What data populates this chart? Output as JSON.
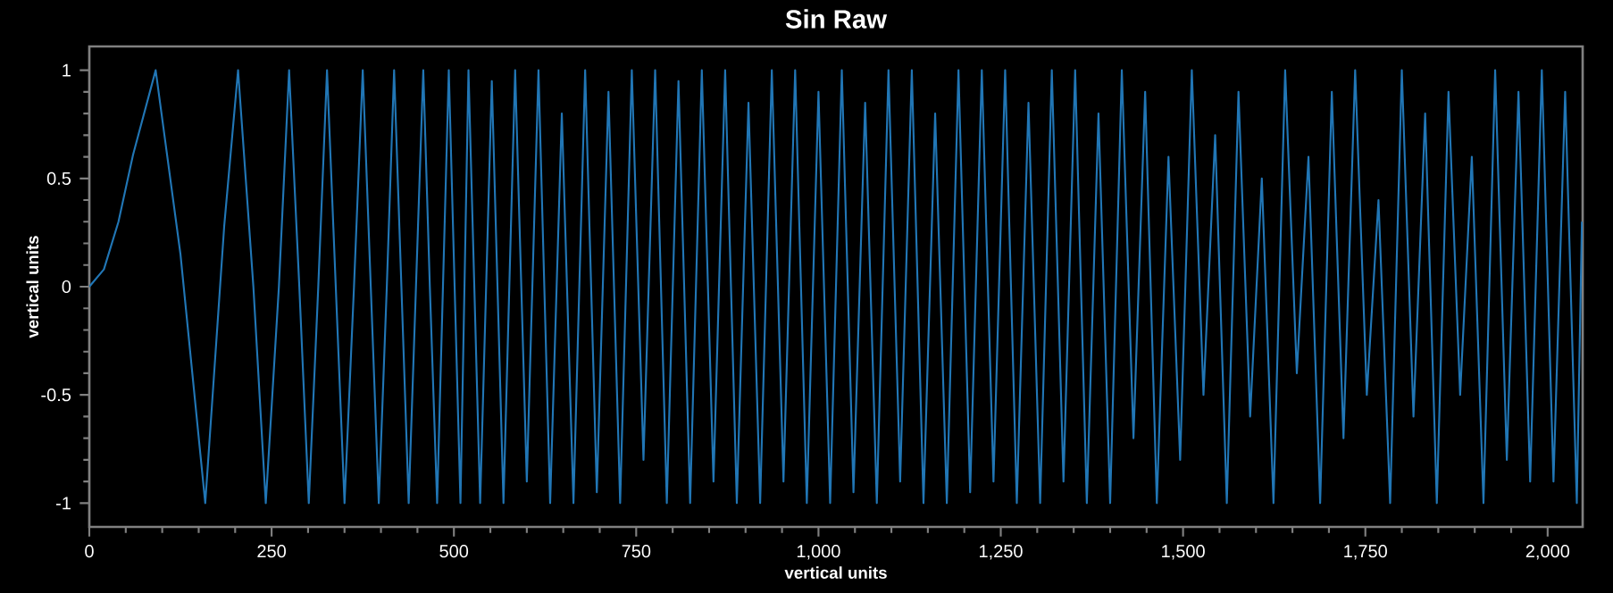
{
  "chart_data": {
    "type": "line",
    "title": "Sin Raw",
    "xlabel": "vertical units",
    "ylabel": "vertical units",
    "xlim": [
      0,
      2048
    ],
    "ylim": [
      -1.11,
      1.11
    ],
    "xticks": [
      0,
      250,
      500,
      750,
      {
        "value": 1000,
        "label": "1,000"
      },
      {
        "value": 1250,
        "label": "1,250"
      },
      {
        "value": 1500,
        "label": "1,500"
      },
      {
        "value": 1750,
        "label": "1,750"
      },
      {
        "value": 2000,
        "label": "2,000"
      }
    ],
    "yticks": [
      -1,
      -0.5,
      0,
      0.5,
      1
    ],
    "grid": false,
    "marker": "none",
    "line_style": "solid",
    "series": [
      {
        "color": "#2176b5",
        "x": [
          0,
          20,
          40,
          60,
          91,
          125,
          159,
          185,
          204,
          225,
          242,
          260,
          274,
          288,
          301,
          314,
          326,
          338,
          350,
          363,
          375,
          386,
          397,
          408,
          418,
          428,
          438,
          448,
          458,
          467,
          477,
          485,
          493,
          501,
          509,
          520,
          536,
          552,
          568,
          584,
          600,
          616,
          632,
          648,
          664,
          680,
          696,
          712,
          728,
          744,
          760,
          776,
          792,
          808,
          824,
          840,
          856,
          872,
          888,
          904,
          920,
          936,
          952,
          968,
          984,
          1000,
          1016,
          1032,
          1048,
          1064,
          1080,
          1096,
          1112,
          1128,
          1144,
          1160,
          1176,
          1192,
          1208,
          1224,
          1240,
          1256,
          1272,
          1288,
          1304,
          1320,
          1336,
          1352,
          1368,
          1384,
          1400,
          1416,
          1432,
          1448,
          1464,
          1480,
          1496,
          1512,
          1528,
          1544,
          1560,
          1576,
          1592,
          1608,
          1624,
          1640,
          1656,
          1672,
          1688,
          1704,
          1720,
          1736,
          1752,
          1768,
          1784,
          1800,
          1816,
          1832,
          1848,
          1864,
          1880,
          1896,
          1912,
          1928,
          1944,
          1960,
          1976,
          1992,
          2008,
          2024,
          2040,
          2047
        ],
        "values": [
          0,
          0.08,
          0.3,
          0.61,
          1,
          0.15,
          -1,
          0.28,
          1,
          0,
          -1,
          0,
          1,
          0,
          -1,
          0,
          1,
          0,
          -1,
          0,
          1,
          0,
          -1,
          0,
          1,
          0,
          -1,
          0,
          1,
          0,
          -1,
          0,
          1,
          0,
          -1,
          1,
          -1,
          0.95,
          -1,
          1,
          -0.9,
          1,
          -1,
          0.8,
          -1,
          1,
          -0.95,
          0.9,
          -1,
          1,
          -0.8,
          1,
          -1,
          0.95,
          -1,
          1,
          -0.9,
          1,
          -1,
          0.85,
          -1,
          1,
          -0.9,
          1,
          -1,
          0.9,
          -1,
          1,
          -0.95,
          0.85,
          -1,
          1,
          -0.9,
          1,
          -1,
          0.8,
          -1,
          1,
          -0.95,
          1,
          -0.9,
          1,
          -1,
          0.85,
          -1,
          1,
          -0.9,
          1,
          -1,
          0.8,
          -1,
          1,
          -0.7,
          0.9,
          -1,
          0.6,
          -0.8,
          1,
          -0.5,
          0.7,
          -1,
          0.9,
          -0.6,
          0.5,
          -1,
          1,
          -0.4,
          0.6,
          -1,
          0.9,
          -0.7,
          1,
          -0.5,
          0.4,
          -1,
          1,
          -0.6,
          0.8,
          -1,
          0.9,
          -0.5,
          0.6,
          -1,
          1,
          -0.8,
          0.9,
          -0.9,
          1,
          -0.9,
          0.9,
          -1,
          0.3
        ]
      }
    ]
  }
}
